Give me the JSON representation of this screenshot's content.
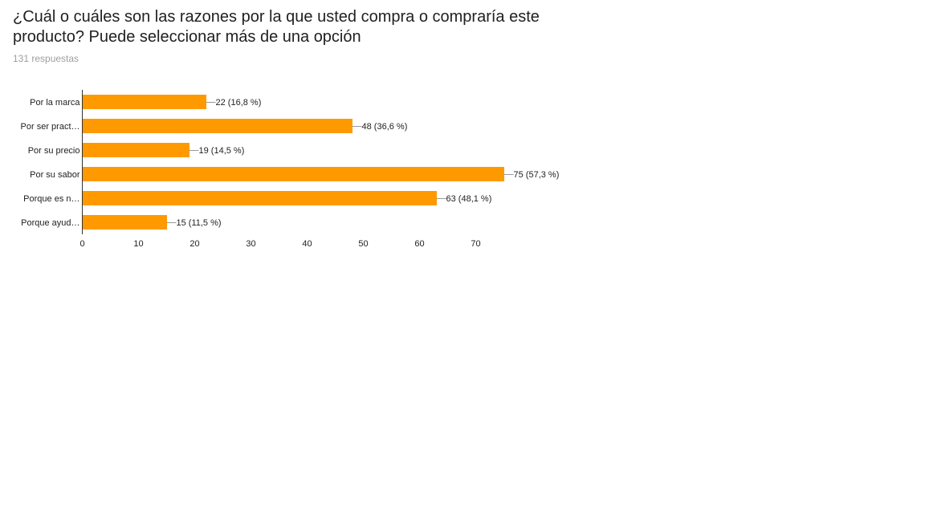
{
  "question": {
    "title": "¿Cuál o cuáles son las razones por la que usted compra o compraría este producto? Puede seleccionar más de una opción",
    "responses": "131 respuestas"
  },
  "chart_data": {
    "type": "bar",
    "orientation": "horizontal",
    "categories": [
      "Por la marca",
      "Por ser pract…",
      "Por su precio",
      "Por su sabor",
      "Porque es n…",
      "Porque ayud…"
    ],
    "values": [
      22,
      48,
      19,
      75,
      63,
      15
    ],
    "labels": [
      "22 (16,8 %)",
      "48 (36,6 %)",
      "19 (14,5 %)",
      "75 (57,3 %)",
      "63 (48,1 %)",
      "15 (11,5 %)"
    ],
    "xticks": [
      0,
      10,
      20,
      30,
      40,
      50,
      60,
      70
    ],
    "xlim": [
      0,
      75
    ],
    "grid": false,
    "bar_color": "#ff9900"
  }
}
